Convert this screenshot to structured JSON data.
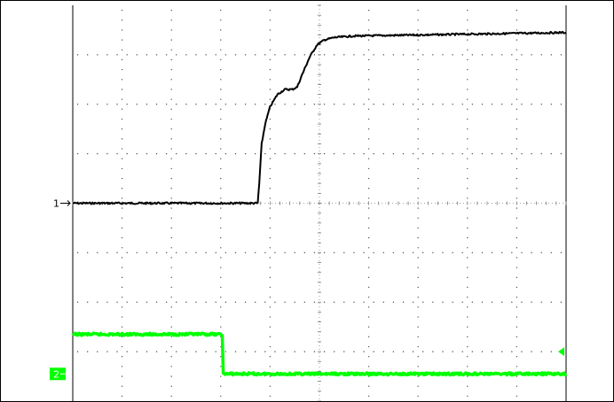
{
  "scope": {
    "grid": {
      "h_divisions": 10,
      "v_divisions": 8,
      "subdivisions": 5
    },
    "channels": [
      {
        "id": "1",
        "marker_label": "1",
        "color": "#000000",
        "ground_level_div": 4.0,
        "trace": [
          [
            0,
            4.0
          ],
          [
            3.75,
            4.0
          ],
          [
            3.78,
            4.4
          ],
          [
            3.83,
            5.2
          ],
          [
            3.9,
            5.6
          ],
          [
            4.0,
            5.95
          ],
          [
            4.15,
            6.2
          ],
          [
            4.3,
            6.3
          ],
          [
            4.45,
            6.3
          ],
          [
            4.55,
            6.35
          ],
          [
            4.65,
            6.6
          ],
          [
            4.8,
            6.95
          ],
          [
            4.95,
            7.2
          ],
          [
            5.1,
            7.3
          ],
          [
            5.3,
            7.35
          ],
          [
            5.7,
            7.38
          ],
          [
            7,
            7.4
          ],
          [
            10,
            7.45
          ]
        ]
      },
      {
        "id": "2",
        "marker_label": "2",
        "color": "#00ff00",
        "ground_level_div": 0.55,
        "trace": [
          [
            0,
            1.35
          ],
          [
            3.03,
            1.35
          ],
          [
            3.05,
            0.55
          ],
          [
            10,
            0.55
          ]
        ]
      }
    ],
    "trigger_level_marker_color": "#00ff00"
  }
}
